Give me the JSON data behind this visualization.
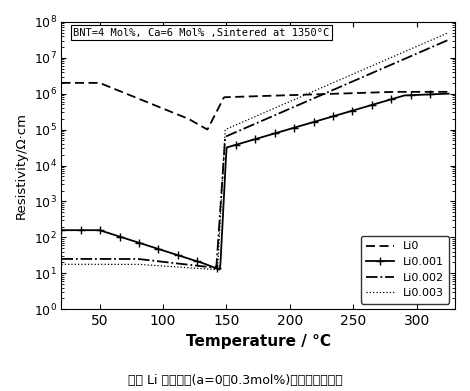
{
  "title": "BNT=4 Mol%, Ca=6 Mol% ,Sintered at 1350°C",
  "xlabel": "Temperature / °C",
  "ylabel": "Resistivity/Ω·cm",
  "xlim": [
    20,
    330
  ],
  "ylim": [
    1.0,
    100000000.0
  ],
  "xticks": [
    50,
    100,
    150,
    200,
    250,
    300
  ],
  "ytick_powers": [
    0,
    1,
    2,
    3,
    4,
    5,
    6,
    7,
    8
  ],
  "legend_labels": [
    "Li0",
    "Li0.001",
    "Li0.002",
    "Li0.003"
  ],
  "caption": "不同 Li 含量材料(a=0～0.3mol%)的阵温特性图谱",
  "bg_color": "#ffffff",
  "annotation": "BNT=4 Mol%, Ca=6 Mol% ,Sintered at 1350°C"
}
